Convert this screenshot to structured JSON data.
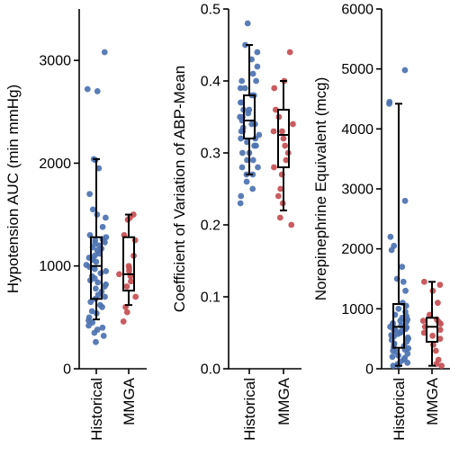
{
  "colors": {
    "historical": "#4c72b0",
    "mmga": "#c44e52",
    "axis": "#000000"
  },
  "chart_data": [
    {
      "type": "scatter",
      "categories": [
        "Historical",
        "MMGA"
      ],
      "ylabel": "Hypotension AUC (min mmHg)",
      "ylim": [
        0,
        3500
      ],
      "yticks": [
        0,
        1000,
        2000,
        3000
      ],
      "series": [
        {
          "name": "Historical",
          "values": [
            3080,
            2720,
            2700,
            2040,
            2030,
            1950,
            1700,
            1550,
            1500,
            1470,
            1380,
            1300,
            1280,
            1260,
            1250,
            1230,
            1220,
            1200,
            1180,
            1170,
            1150,
            1120,
            1100,
            1080,
            1060,
            1040,
            1010,
            990,
            970,
            950,
            930,
            900,
            880,
            860,
            840,
            820,
            800,
            780,
            750,
            720,
            700,
            680,
            650,
            620,
            600,
            560,
            540,
            500,
            470,
            450,
            420,
            400,
            380,
            350,
            320,
            260
          ],
          "box": {
            "whisker_low": 480,
            "q1": 680,
            "median": 1000,
            "q3": 1280,
            "whisker_high": 2040
          }
        },
        {
          "name": "MMGA",
          "values": [
            1500,
            1470,
            1450,
            1300,
            1250,
            1100,
            1000,
            980,
            950,
            920,
            900,
            850,
            800,
            700,
            600,
            550,
            460
          ],
          "box": {
            "whisker_low": 620,
            "q1": 760,
            "median": 920,
            "q3": 1280,
            "whisker_high": 1500
          }
        }
      ]
    },
    {
      "type": "scatter",
      "categories": [
        "Historical",
        "MMGA"
      ],
      "ylabel": "Coefficient of Variation of ABP-Mean",
      "ylim": [
        0,
        0.5
      ],
      "yticks": [
        0.0,
        0.1,
        0.2,
        0.3,
        0.4,
        0.5
      ],
      "series": [
        {
          "name": "Historical",
          "values": [
            0.48,
            0.45,
            0.44,
            0.43,
            0.42,
            0.41,
            0.4,
            0.4,
            0.39,
            0.39,
            0.38,
            0.38,
            0.37,
            0.37,
            0.36,
            0.36,
            0.355,
            0.35,
            0.35,
            0.345,
            0.34,
            0.34,
            0.335,
            0.33,
            0.33,
            0.325,
            0.32,
            0.32,
            0.315,
            0.31,
            0.31,
            0.3,
            0.3,
            0.29,
            0.29,
            0.28,
            0.28,
            0.27,
            0.27,
            0.26,
            0.25,
            0.24,
            0.23
          ],
          "box": {
            "whisker_low": 0.27,
            "q1": 0.32,
            "median": 0.345,
            "q3": 0.38,
            "whisker_high": 0.45
          }
        },
        {
          "name": "MMGA",
          "values": [
            0.44,
            0.4,
            0.39,
            0.36,
            0.35,
            0.34,
            0.33,
            0.33,
            0.32,
            0.31,
            0.3,
            0.29,
            0.28,
            0.27,
            0.25,
            0.24,
            0.23,
            0.21,
            0.2
          ],
          "box": {
            "whisker_low": 0.22,
            "q1": 0.28,
            "median": 0.325,
            "q3": 0.36,
            "whisker_high": 0.4
          }
        }
      ]
    },
    {
      "type": "scatter",
      "categories": [
        "Historical",
        "MMGA"
      ],
      "ylabel": "Norepinephrine Equivalent (mcg)",
      "ylim": [
        0,
        6000
      ],
      "yticks": [
        0,
        1000,
        2000,
        3000,
        4000,
        5000,
        6000
      ],
      "series": [
        {
          "name": "Historical",
          "values": [
            4980,
            4450,
            4420,
            2800,
            2200,
            2050,
            1980,
            1700,
            1500,
            1450,
            1300,
            1100,
            1050,
            1000,
            950,
            900,
            880,
            850,
            820,
            800,
            780,
            760,
            740,
            720,
            700,
            690,
            680,
            660,
            650,
            640,
            620,
            600,
            580,
            560,
            540,
            520,
            500,
            480,
            450,
            420,
            400,
            380,
            360,
            340,
            320,
            300,
            280,
            250,
            220,
            200,
            180,
            150,
            120,
            100,
            80,
            60,
            50
          ],
          "box": {
            "whisker_low": 50,
            "q1": 350,
            "median": 700,
            "q3": 1080,
            "whisker_high": 4420
          }
        },
        {
          "name": "MMGA",
          "values": [
            1450,
            1400,
            1300,
            1100,
            900,
            820,
            800,
            780,
            750,
            700,
            650,
            600,
            550,
            500,
            400,
            300,
            150,
            80,
            50
          ],
          "box": {
            "whisker_low": 50,
            "q1": 450,
            "median": 700,
            "q3": 850,
            "whisker_high": 1450
          }
        }
      ]
    }
  ]
}
